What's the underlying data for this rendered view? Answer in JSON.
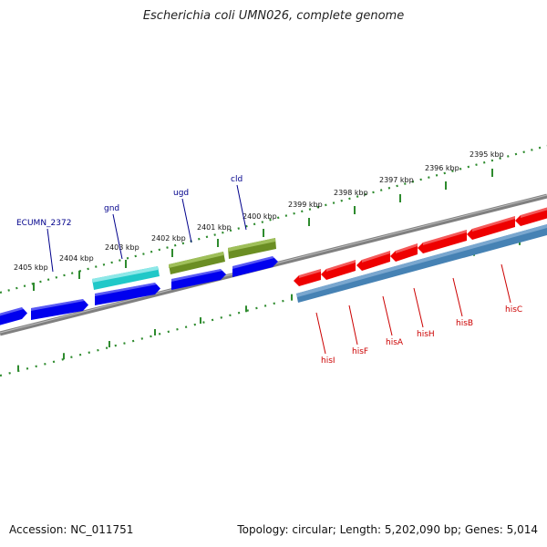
{
  "title": "Escherichia coli UMN026, complete genome",
  "footer": {
    "accession": "Accession: NC_011751",
    "stats": "Topology: circular; Length: 5,202,090 bp; Genes: 5,014"
  },
  "scale_labels": [
    "2395 kbp",
    "2396 kbp",
    "2397 kbp",
    "2398 kbp",
    "2399 kbp",
    "2400 kbp",
    "2401 kbp",
    "2402 kbp",
    "2403 kbp",
    "2404 kbp",
    "2405 kbp"
  ],
  "genes_forward_labels": [
    "ECUMN_2372",
    "gnd",
    "ugd",
    "cld"
  ],
  "genes_reverse_labels": [
    "hisI",
    "hisF",
    "hisA",
    "hisH",
    "hisB",
    "hisC"
  ],
  "colors": {
    "backbone": "#808080",
    "forward_cds": "#0000ee",
    "teal_cds": "#20c8c8",
    "olive_cds": "#6b8e23",
    "reverse_cds": "#ee0000",
    "reverse_operon": "#4682b4",
    "forward_label": "#00008b",
    "reverse_label": "#cc0000",
    "tick": "#2e8b2e"
  }
}
